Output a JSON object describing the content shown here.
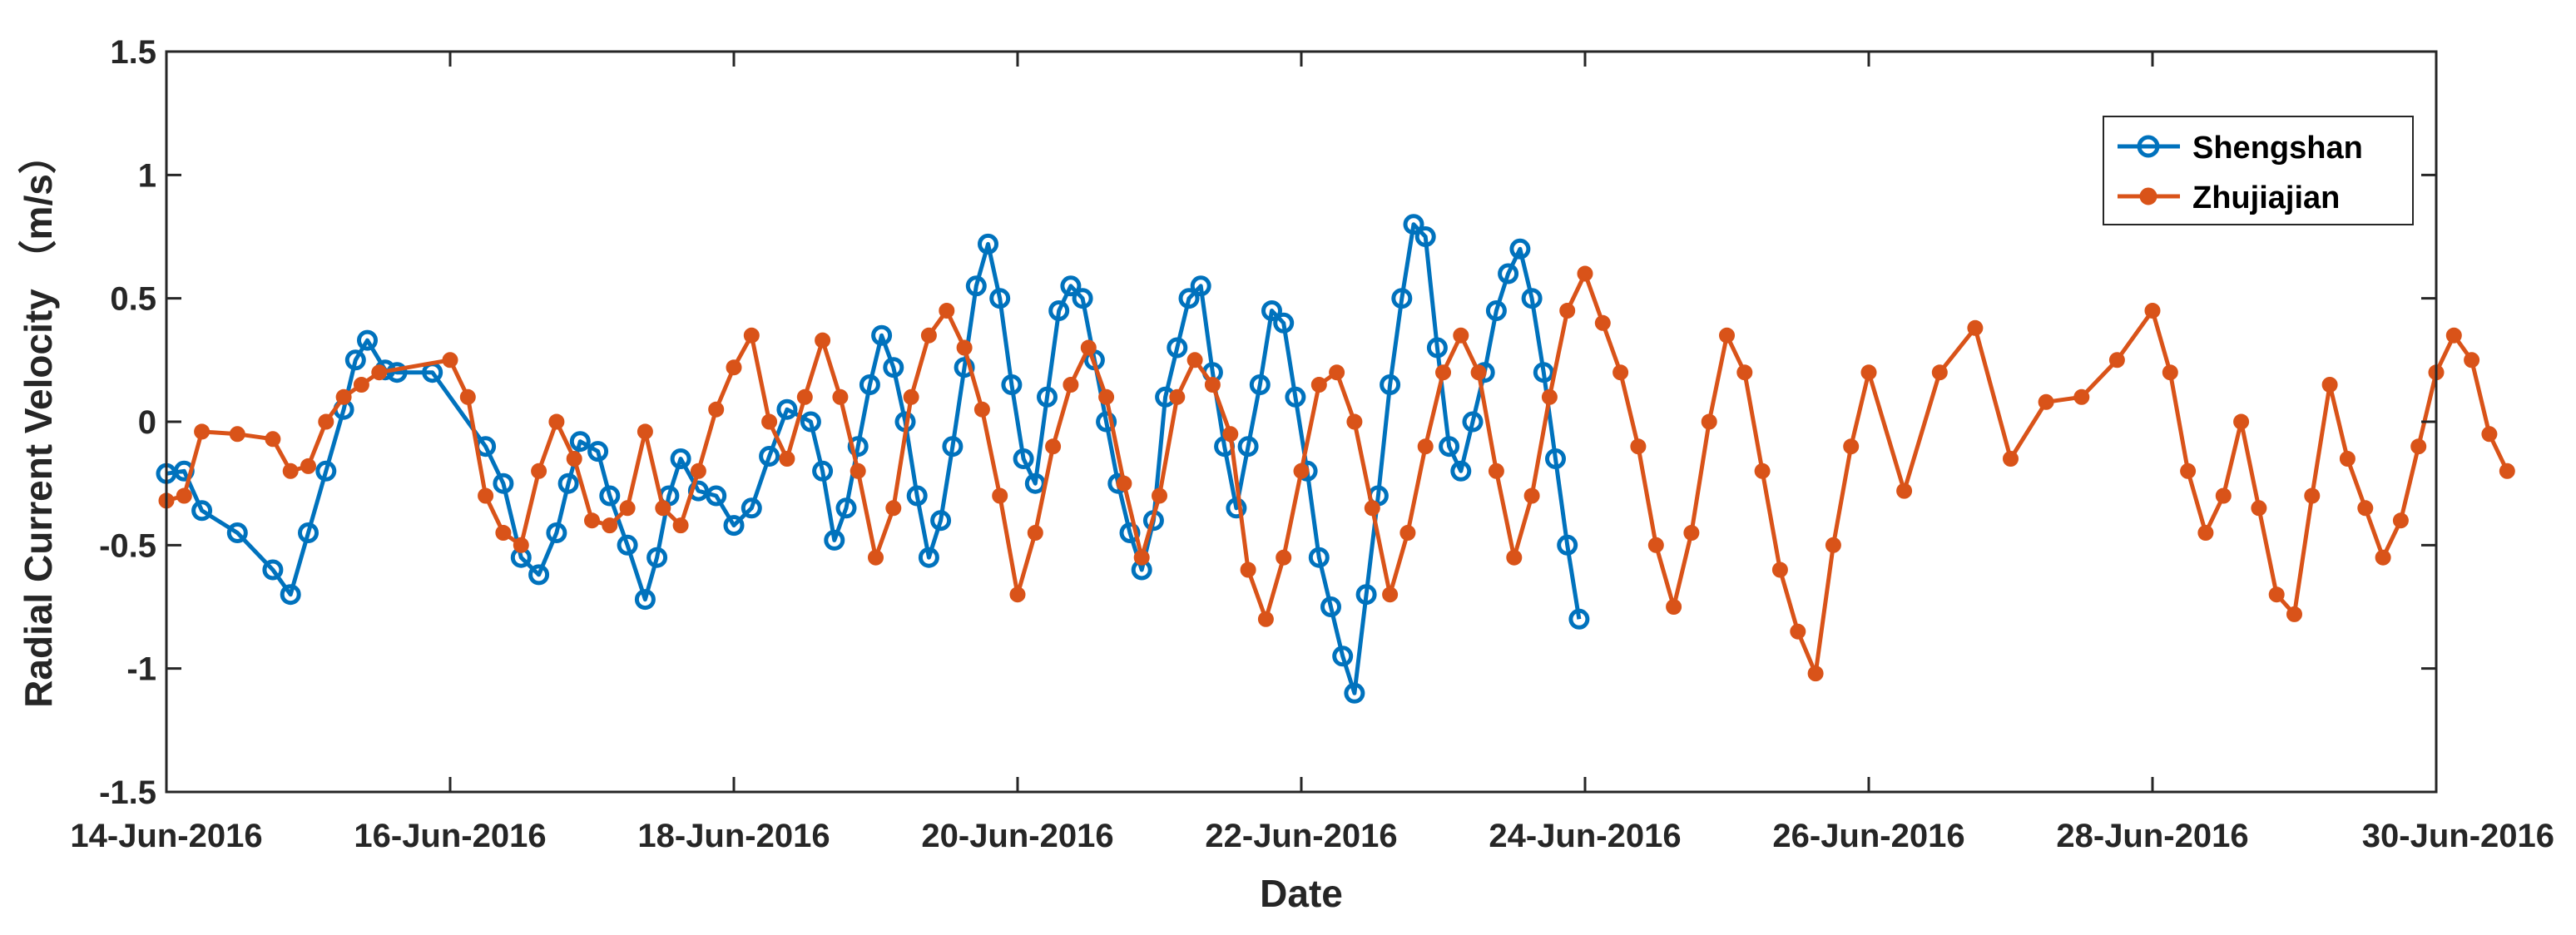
{
  "chart_data": {
    "type": "line",
    "title": "",
    "xlabel": "Date",
    "ylabel": "Radial Current Velocity （m/s）",
    "x_ticks": [
      "14-Jun-2016",
      "16-Jun-2016",
      "18-Jun-2016",
      "20-Jun-2016",
      "22-Jun-2016",
      "24-Jun-2016",
      "26-Jun-2016",
      "28-Jun-2016",
      "30-Jun-2016"
    ],
    "xlim": [
      "2016-06-14",
      "2016-06-30"
    ],
    "ylim": [
      -1.5,
      1.5
    ],
    "y_ticks": [
      "-1.5",
      "-1",
      "-0.5",
      "0",
      "0.5",
      "1",
      "1.5"
    ],
    "grid": false,
    "legend_position": "top-right",
    "series": [
      {
        "name": "Shengshan",
        "color": "#0072BD",
        "marker": "open-circle",
        "points": [
          [
            "2016-06-14T00:00",
            -0.21
          ],
          [
            "2016-06-14T03:00",
            -0.2
          ],
          [
            "2016-06-14T06:00",
            -0.36
          ],
          [
            "2016-06-14T12:00",
            -0.45
          ],
          [
            "2016-06-14T18:00",
            -0.6
          ],
          [
            "2016-06-14T21:00",
            -0.7
          ],
          [
            "2016-06-15T00:00",
            -0.45
          ],
          [
            "2016-06-15T03:00",
            -0.2
          ],
          [
            "2016-06-15T06:00",
            0.05
          ],
          [
            "2016-06-15T08:00",
            0.25
          ],
          [
            "2016-06-15T10:00",
            0.33
          ],
          [
            "2016-06-15T13:00",
            0.21
          ],
          [
            "2016-06-15T15:00",
            0.2
          ],
          [
            "2016-06-15T21:00",
            0.2
          ],
          [
            "2016-06-16T06:00",
            -0.1
          ],
          [
            "2016-06-16T09:00",
            -0.25
          ],
          [
            "2016-06-16T12:00",
            -0.55
          ],
          [
            "2016-06-16T15:00",
            -0.62
          ],
          [
            "2016-06-16T18:00",
            -0.45
          ],
          [
            "2016-06-16T20:00",
            -0.25
          ],
          [
            "2016-06-16T22:00",
            -0.08
          ],
          [
            "2016-06-17T01:00",
            -0.12
          ],
          [
            "2016-06-17T03:00",
            -0.3
          ],
          [
            "2016-06-17T06:00",
            -0.5
          ],
          [
            "2016-06-17T09:00",
            -0.72
          ],
          [
            "2016-06-17T11:00",
            -0.55
          ],
          [
            "2016-06-17T13:00",
            -0.3
          ],
          [
            "2016-06-17T15:00",
            -0.15
          ],
          [
            "2016-06-17T18:00",
            -0.28
          ],
          [
            "2016-06-17T21:00",
            -0.3
          ],
          [
            "2016-06-18T00:00",
            -0.42
          ],
          [
            "2016-06-18T03:00",
            -0.35
          ],
          [
            "2016-06-18T06:00",
            -0.14
          ],
          [
            "2016-06-18T09:00",
            0.05
          ],
          [
            "2016-06-18T13:00",
            0.0
          ],
          [
            "2016-06-18T15:00",
            -0.2
          ],
          [
            "2016-06-18T17:00",
            -0.48
          ],
          [
            "2016-06-18T19:00",
            -0.35
          ],
          [
            "2016-06-18T21:00",
            -0.1
          ],
          [
            "2016-06-18T23:00",
            0.15
          ],
          [
            "2016-06-19T01:00",
            0.35
          ],
          [
            "2016-06-19T03:00",
            0.22
          ],
          [
            "2016-06-19T05:00",
            0.0
          ],
          [
            "2016-06-19T07:00",
            -0.3
          ],
          [
            "2016-06-19T09:00",
            -0.55
          ],
          [
            "2016-06-19T11:00",
            -0.4
          ],
          [
            "2016-06-19T13:00",
            -0.1
          ],
          [
            "2016-06-19T15:00",
            0.22
          ],
          [
            "2016-06-19T17:00",
            0.55
          ],
          [
            "2016-06-19T19:00",
            0.72
          ],
          [
            "2016-06-19T21:00",
            0.5
          ],
          [
            "2016-06-19T23:00",
            0.15
          ],
          [
            "2016-06-20T01:00",
            -0.15
          ],
          [
            "2016-06-20T03:00",
            -0.25
          ],
          [
            "2016-06-20T05:00",
            0.1
          ],
          [
            "2016-06-20T07:00",
            0.45
          ],
          [
            "2016-06-20T09:00",
            0.55
          ],
          [
            "2016-06-20T11:00",
            0.5
          ],
          [
            "2016-06-20T13:00",
            0.25
          ],
          [
            "2016-06-20T15:00",
            0.0
          ],
          [
            "2016-06-20T17:00",
            -0.25
          ],
          [
            "2016-06-20T19:00",
            -0.45
          ],
          [
            "2016-06-20T21:00",
            -0.6
          ],
          [
            "2016-06-20T23:00",
            -0.4
          ],
          [
            "2016-06-21T01:00",
            0.1
          ],
          [
            "2016-06-21T03:00",
            0.3
          ],
          [
            "2016-06-21T05:00",
            0.5
          ],
          [
            "2016-06-21T07:00",
            0.55
          ],
          [
            "2016-06-21T09:00",
            0.2
          ],
          [
            "2016-06-21T11:00",
            -0.1
          ],
          [
            "2016-06-21T13:00",
            -0.35
          ],
          [
            "2016-06-21T15:00",
            -0.1
          ],
          [
            "2016-06-21T17:00",
            0.15
          ],
          [
            "2016-06-21T19:00",
            0.45
          ],
          [
            "2016-06-21T21:00",
            0.4
          ],
          [
            "2016-06-21T23:00",
            0.1
          ],
          [
            "2016-06-22T01:00",
            -0.2
          ],
          [
            "2016-06-22T03:00",
            -0.55
          ],
          [
            "2016-06-22T05:00",
            -0.75
          ],
          [
            "2016-06-22T07:00",
            -0.95
          ],
          [
            "2016-06-22T09:00",
            -1.1
          ],
          [
            "2016-06-22T11:00",
            -0.7
          ],
          [
            "2016-06-22T13:00",
            -0.3
          ],
          [
            "2016-06-22T15:00",
            0.15
          ],
          [
            "2016-06-22T17:00",
            0.5
          ],
          [
            "2016-06-22T19:00",
            0.8
          ],
          [
            "2016-06-22T21:00",
            0.75
          ],
          [
            "2016-06-22T23:00",
            0.3
          ],
          [
            "2016-06-23T01:00",
            -0.1
          ],
          [
            "2016-06-23T03:00",
            -0.2
          ],
          [
            "2016-06-23T05:00",
            0.0
          ],
          [
            "2016-06-23T07:00",
            0.2
          ],
          [
            "2016-06-23T09:00",
            0.45
          ],
          [
            "2016-06-23T11:00",
            0.6
          ],
          [
            "2016-06-23T13:00",
            0.7
          ],
          [
            "2016-06-23T15:00",
            0.5
          ],
          [
            "2016-06-23T17:00",
            0.2
          ],
          [
            "2016-06-23T19:00",
            -0.15
          ],
          [
            "2016-06-23T21:00",
            -0.5
          ],
          [
            "2016-06-23T23:00",
            -0.8
          ]
        ]
      },
      {
        "name": "Zhujiajian",
        "color": "#D95319",
        "marker": "filled-circle",
        "points": [
          [
            "2016-06-14T00:00",
            -0.32
          ],
          [
            "2016-06-14T03:00",
            -0.3
          ],
          [
            "2016-06-14T06:00",
            -0.04
          ],
          [
            "2016-06-14T12:00",
            -0.05
          ],
          [
            "2016-06-14T18:00",
            -0.07
          ],
          [
            "2016-06-14T21:00",
            -0.2
          ],
          [
            "2016-06-15T00:00",
            -0.18
          ],
          [
            "2016-06-15T03:00",
            0.0
          ],
          [
            "2016-06-15T06:00",
            0.1
          ],
          [
            "2016-06-15T09:00",
            0.15
          ],
          [
            "2016-06-15T12:00",
            0.2
          ],
          [
            "2016-06-16T00:00",
            0.25
          ],
          [
            "2016-06-16T03:00",
            0.1
          ],
          [
            "2016-06-16T06:00",
            -0.3
          ],
          [
            "2016-06-16T09:00",
            -0.45
          ],
          [
            "2016-06-16T12:00",
            -0.5
          ],
          [
            "2016-06-16T15:00",
            -0.2
          ],
          [
            "2016-06-16T18:00",
            0.0
          ],
          [
            "2016-06-16T21:00",
            -0.15
          ],
          [
            "2016-06-17T00:00",
            -0.4
          ],
          [
            "2016-06-17T03:00",
            -0.42
          ],
          [
            "2016-06-17T06:00",
            -0.35
          ],
          [
            "2016-06-17T09:00",
            -0.04
          ],
          [
            "2016-06-17T12:00",
            -0.35
          ],
          [
            "2016-06-17T15:00",
            -0.42
          ],
          [
            "2016-06-17T18:00",
            -0.2
          ],
          [
            "2016-06-17T21:00",
            0.05
          ],
          [
            "2016-06-18T00:00",
            0.22
          ],
          [
            "2016-06-18T03:00",
            0.35
          ],
          [
            "2016-06-18T06:00",
            0.0
          ],
          [
            "2016-06-18T09:00",
            -0.15
          ],
          [
            "2016-06-18T12:00",
            0.1
          ],
          [
            "2016-06-18T15:00",
            0.33
          ],
          [
            "2016-06-18T18:00",
            0.1
          ],
          [
            "2016-06-18T21:00",
            -0.2
          ],
          [
            "2016-06-19T00:00",
            -0.55
          ],
          [
            "2016-06-19T03:00",
            -0.35
          ],
          [
            "2016-06-19T06:00",
            0.1
          ],
          [
            "2016-06-19T09:00",
            0.35
          ],
          [
            "2016-06-19T12:00",
            0.45
          ],
          [
            "2016-06-19T15:00",
            0.3
          ],
          [
            "2016-06-19T18:00",
            0.05
          ],
          [
            "2016-06-19T21:00",
            -0.3
          ],
          [
            "2016-06-20T00:00",
            -0.7
          ],
          [
            "2016-06-20T03:00",
            -0.45
          ],
          [
            "2016-06-20T06:00",
            -0.1
          ],
          [
            "2016-06-20T09:00",
            0.15
          ],
          [
            "2016-06-20T12:00",
            0.3
          ],
          [
            "2016-06-20T15:00",
            0.1
          ],
          [
            "2016-06-20T18:00",
            -0.25
          ],
          [
            "2016-06-20T21:00",
            -0.55
          ],
          [
            "2016-06-21T00:00",
            -0.3
          ],
          [
            "2016-06-21T03:00",
            0.1
          ],
          [
            "2016-06-21T06:00",
            0.25
          ],
          [
            "2016-06-21T09:00",
            0.15
          ],
          [
            "2016-06-21T12:00",
            -0.05
          ],
          [
            "2016-06-21T15:00",
            -0.6
          ],
          [
            "2016-06-21T18:00",
            -0.8
          ],
          [
            "2016-06-21T21:00",
            -0.55
          ],
          [
            "2016-06-22T00:00",
            -0.2
          ],
          [
            "2016-06-22T03:00",
            0.15
          ],
          [
            "2016-06-22T06:00",
            0.2
          ],
          [
            "2016-06-22T09:00",
            0.0
          ],
          [
            "2016-06-22T12:00",
            -0.35
          ],
          [
            "2016-06-22T15:00",
            -0.7
          ],
          [
            "2016-06-22T18:00",
            -0.45
          ],
          [
            "2016-06-22T21:00",
            -0.1
          ],
          [
            "2016-06-23T00:00",
            0.2
          ],
          [
            "2016-06-23T03:00",
            0.35
          ],
          [
            "2016-06-23T06:00",
            0.2
          ],
          [
            "2016-06-23T09:00",
            -0.2
          ],
          [
            "2016-06-23T12:00",
            -0.55
          ],
          [
            "2016-06-23T15:00",
            -0.3
          ],
          [
            "2016-06-23T18:00",
            0.1
          ],
          [
            "2016-06-23T21:00",
            0.45
          ],
          [
            "2016-06-24T00:00",
            0.6
          ],
          [
            "2016-06-24T03:00",
            0.4
          ],
          [
            "2016-06-24T06:00",
            0.2
          ],
          [
            "2016-06-24T09:00",
            -0.1
          ],
          [
            "2016-06-24T12:00",
            -0.5
          ],
          [
            "2016-06-24T15:00",
            -0.75
          ],
          [
            "2016-06-24T18:00",
            -0.45
          ],
          [
            "2016-06-24T21:00",
            0.0
          ],
          [
            "2016-06-25T00:00",
            0.35
          ],
          [
            "2016-06-25T03:00",
            0.2
          ],
          [
            "2016-06-25T06:00",
            -0.2
          ],
          [
            "2016-06-25T09:00",
            -0.6
          ],
          [
            "2016-06-25T12:00",
            -0.85
          ],
          [
            "2016-06-25T15:00",
            -1.02
          ],
          [
            "2016-06-25T18:00",
            -0.5
          ],
          [
            "2016-06-25T21:00",
            -0.1
          ],
          [
            "2016-06-26T00:00",
            0.2
          ],
          [
            "2016-06-26T06:00",
            -0.28
          ],
          [
            "2016-06-26T12:00",
            0.2
          ],
          [
            "2016-06-26T18:00",
            0.38
          ],
          [
            "2016-06-27T00:00",
            -0.15
          ],
          [
            "2016-06-27T06:00",
            0.08
          ],
          [
            "2016-06-27T12:00",
            0.1
          ],
          [
            "2016-06-27T18:00",
            0.25
          ],
          [
            "2016-06-28T00:00",
            0.45
          ],
          [
            "2016-06-28T03:00",
            0.2
          ],
          [
            "2016-06-28T06:00",
            -0.2
          ],
          [
            "2016-06-28T09:00",
            -0.45
          ],
          [
            "2016-06-28T12:00",
            -0.3
          ],
          [
            "2016-06-28T15:00",
            0.0
          ],
          [
            "2016-06-28T18:00",
            -0.35
          ],
          [
            "2016-06-28T21:00",
            -0.7
          ],
          [
            "2016-06-29T00:00",
            -0.78
          ],
          [
            "2016-06-29T03:00",
            -0.3
          ],
          [
            "2016-06-29T06:00",
            0.15
          ],
          [
            "2016-06-29T09:00",
            -0.15
          ],
          [
            "2016-06-29T12:00",
            -0.35
          ],
          [
            "2016-06-29T15:00",
            -0.55
          ],
          [
            "2016-06-29T18:00",
            -0.4
          ],
          [
            "2016-06-29T21:00",
            -0.1
          ],
          [
            "2016-06-30T00:00",
            0.2
          ],
          [
            "2016-06-30T03:00",
            0.35
          ],
          [
            "2016-06-30T06:00",
            0.25
          ],
          [
            "2016-06-30T09:00",
            -0.05
          ],
          [
            "2016-06-30T12:00",
            -0.2
          ]
        ]
      }
    ]
  }
}
